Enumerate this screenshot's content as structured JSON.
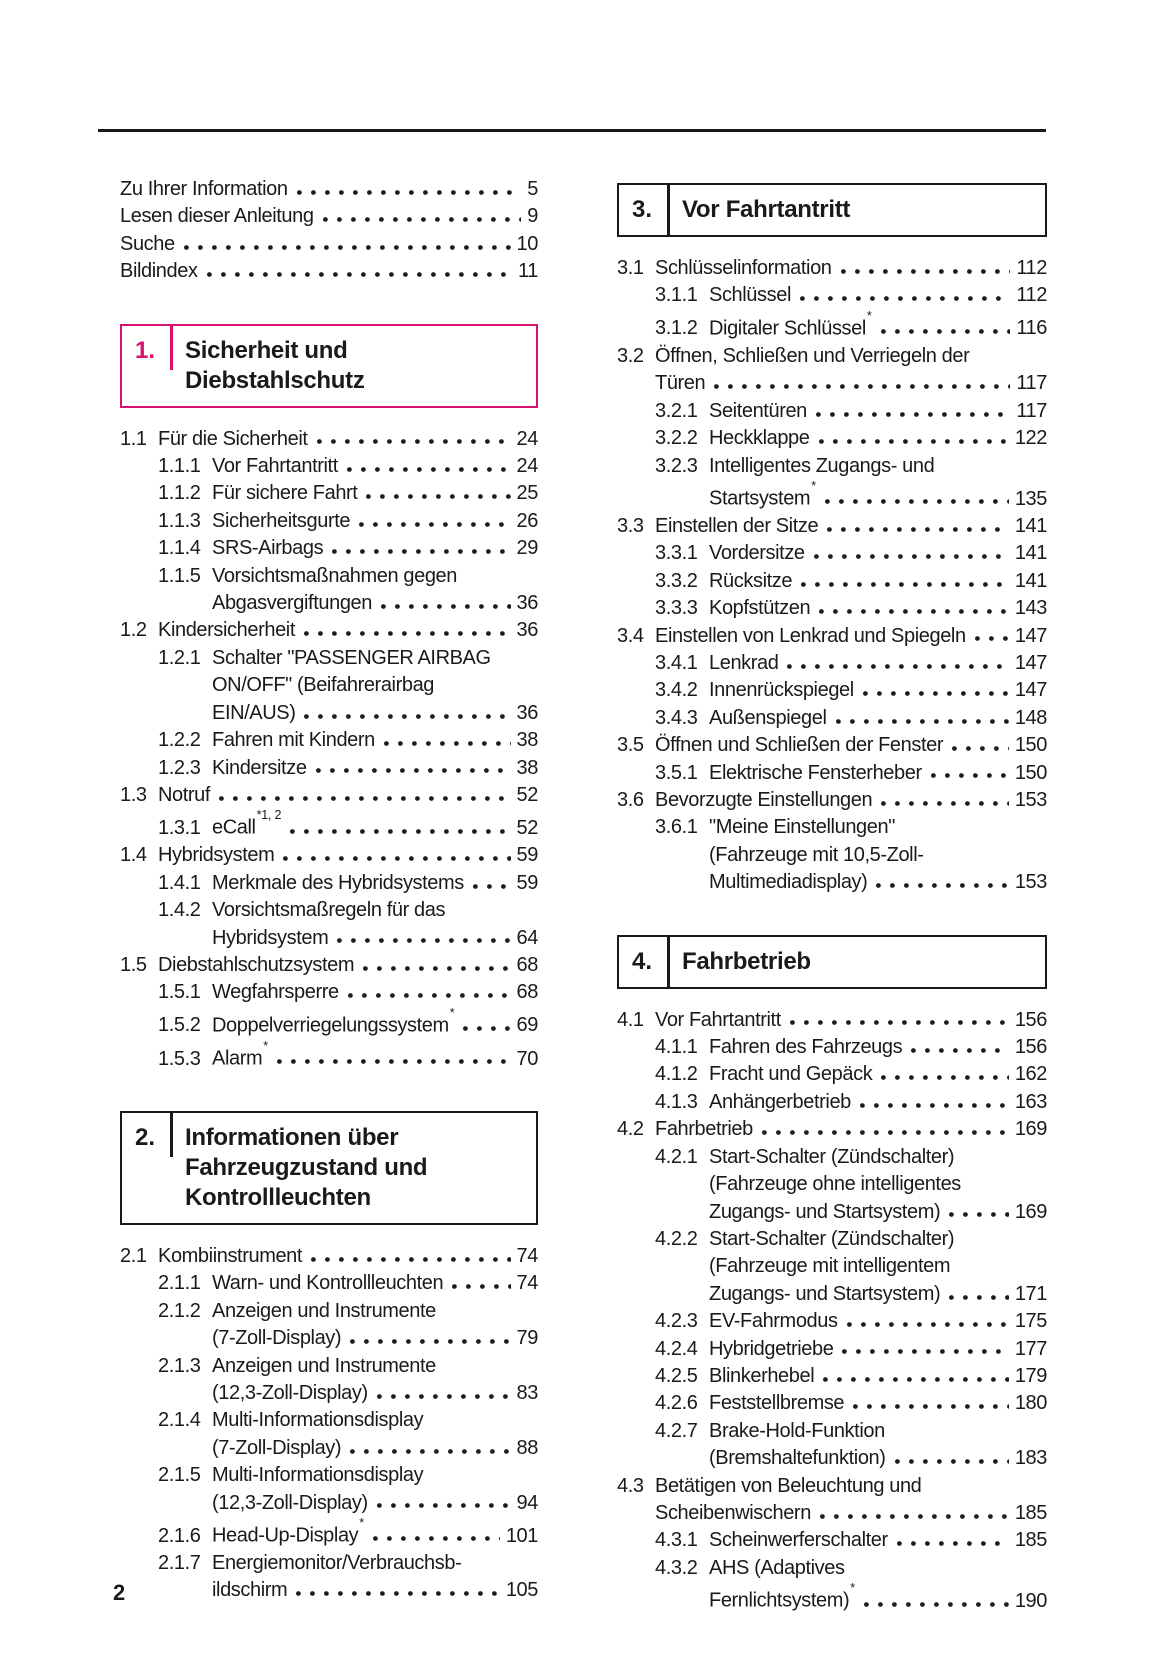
{
  "colors": {
    "ink": "#1a1a1a",
    "accent_pink": "#d6116e"
  },
  "footer": {
    "page_number": "2"
  },
  "columns": {
    "left": [
      {
        "type": "list",
        "entries": [
          {
            "lines": [
              "Zu Ihrer Information"
            ],
            "page": "5"
          },
          {
            "lines": [
              "Lesen dieser Anleitung"
            ],
            "page": "9"
          },
          {
            "lines": [
              "Suche"
            ],
            "page": "10"
          },
          {
            "lines": [
              "Bildindex"
            ],
            "page": "11"
          }
        ]
      },
      {
        "type": "box",
        "number": "1.",
        "accent": "pink",
        "title_lines": [
          "Sicherheit und",
          "Diebstahlschutz"
        ]
      },
      {
        "type": "list",
        "entries": [
          {
            "num": "1.1",
            "lines": [
              "Für die Sicherheit"
            ],
            "page": "24"
          },
          {
            "num": "1.1.1",
            "lines": [
              "Vor Fahrtantritt"
            ],
            "page": "24"
          },
          {
            "num": "1.1.2",
            "lines": [
              "Für sichere Fahrt"
            ],
            "page": "25"
          },
          {
            "num": "1.1.3",
            "lines": [
              "Sicherheitsgurte"
            ],
            "page": "26"
          },
          {
            "num": "1.1.4",
            "lines": [
              "SRS-Airbags"
            ],
            "page": "29"
          },
          {
            "num": "1.1.5",
            "lines": [
              "Vorsichtsmaßnahmen gegen",
              "Abgasvergiftungen"
            ],
            "page": "36"
          },
          {
            "num": "1.2",
            "lines": [
              "Kindersicherheit"
            ],
            "page": "36"
          },
          {
            "num": "1.2.1",
            "lines": [
              "Schalter \"PASSENGER AIRBAG",
              "ON/OFF\" (Beifahrerairbag",
              "EIN/AUS)"
            ],
            "page": "36"
          },
          {
            "num": "1.2.2",
            "lines": [
              "Fahren mit Kindern"
            ],
            "page": "38"
          },
          {
            "num": "1.2.3",
            "lines": [
              "Kindersitze"
            ],
            "page": "38"
          },
          {
            "num": "1.3",
            "lines": [
              "Notruf"
            ],
            "page": "52"
          },
          {
            "num": "1.3.1",
            "lines": [
              "eCall"
            ],
            "sup": "*1, 2",
            "page": "52"
          },
          {
            "num": "1.4",
            "lines": [
              "Hybridsystem"
            ],
            "page": "59"
          },
          {
            "num": "1.4.1",
            "lines": [
              "Merkmale des Hybridsystems"
            ],
            "page": "59"
          },
          {
            "num": "1.4.2",
            "lines": [
              "Vorsichtsmaßregeln für das",
              "Hybridsystem"
            ],
            "page": "64"
          },
          {
            "num": "1.5",
            "lines": [
              "Diebstahlschutzsystem"
            ],
            "page": "68"
          },
          {
            "num": "1.5.1",
            "lines": [
              "Wegfahrsperre"
            ],
            "page": "68"
          },
          {
            "num": "1.5.2",
            "lines": [
              "Doppelverriegelungssystem"
            ],
            "sup": "*",
            "page": "69"
          },
          {
            "num": "1.5.3",
            "lines": [
              "Alarm"
            ],
            "sup": "*",
            "page": "70"
          }
        ]
      },
      {
        "type": "box",
        "number": "2.",
        "accent": "black",
        "title_lines": [
          "Informationen über",
          "Fahrzeugzustand und",
          "Kontrollleuchten"
        ]
      },
      {
        "type": "list",
        "entries": [
          {
            "num": "2.1",
            "lines": [
              "Kombiinstrument"
            ],
            "page": "74"
          },
          {
            "num": "2.1.1",
            "lines": [
              "Warn- und Kontrollleuchten"
            ],
            "page": "74"
          },
          {
            "num": "2.1.2",
            "lines": [
              "Anzeigen und Instrumente",
              "(7-Zoll-Display)"
            ],
            "page": "79"
          },
          {
            "num": "2.1.3",
            "lines": [
              "Anzeigen und Instrumente",
              "(12,3-Zoll-Display)"
            ],
            "page": "83"
          },
          {
            "num": "2.1.4",
            "lines": [
              "Multi-Informationsdisplay",
              "(7-Zoll-Display)"
            ],
            "page": "88"
          },
          {
            "num": "2.1.5",
            "lines": [
              "Multi-Informationsdisplay",
              "(12,3-Zoll-Display)"
            ],
            "page": "94"
          },
          {
            "num": "2.1.6",
            "lines": [
              "Head-Up-Display"
            ],
            "sup": "*",
            "page": "101"
          },
          {
            "num": "2.1.7",
            "lines": [
              "Energiemonitor/Verbrauchsb-",
              "ildschirm"
            ],
            "page": "105"
          }
        ]
      }
    ],
    "right": [
      {
        "type": "box",
        "number": "3.",
        "accent": "black",
        "title_lines": [
          "Vor Fahrtantritt"
        ]
      },
      {
        "type": "list",
        "entries": [
          {
            "num": "3.1",
            "lines": [
              "Schlüsselinformation"
            ],
            "page": "112"
          },
          {
            "num": "3.1.1",
            "lines": [
              "Schlüssel"
            ],
            "page": "112"
          },
          {
            "num": "3.1.2",
            "lines": [
              "Digitaler Schlüssel"
            ],
            "sup": "*",
            "page": "116"
          },
          {
            "num": "3.2",
            "lines": [
              "Öffnen, Schließen und Verriegeln der",
              "Türen"
            ],
            "page": "117"
          },
          {
            "num": "3.2.1",
            "lines": [
              "Seitentüren"
            ],
            "page": "117"
          },
          {
            "num": "3.2.2",
            "lines": [
              "Heckklappe"
            ],
            "page": "122"
          },
          {
            "num": "3.2.3",
            "lines": [
              "Intelligentes Zugangs- und",
              "Startsystem"
            ],
            "sup": "*",
            "page": "135"
          },
          {
            "num": "3.3",
            "lines": [
              "Einstellen der Sitze"
            ],
            "page": "141"
          },
          {
            "num": "3.3.1",
            "lines": [
              "Vordersitze"
            ],
            "page": "141"
          },
          {
            "num": "3.3.2",
            "lines": [
              "Rücksitze"
            ],
            "page": "141"
          },
          {
            "num": "3.3.3",
            "lines": [
              "Kopfstützen"
            ],
            "page": "143"
          },
          {
            "num": "3.4",
            "lines": [
              "Einstellen von Lenkrad und Spiegeln"
            ],
            "page": "147"
          },
          {
            "num": "3.4.1",
            "lines": [
              "Lenkrad"
            ],
            "page": "147"
          },
          {
            "num": "3.4.2",
            "lines": [
              "Innenrückspiegel"
            ],
            "page": "147"
          },
          {
            "num": "3.4.3",
            "lines": [
              "Außenspiegel"
            ],
            "page": "148"
          },
          {
            "num": "3.5",
            "lines": [
              "Öffnen und Schließen der Fenster"
            ],
            "page": "150"
          },
          {
            "num": "3.5.1",
            "lines": [
              "Elektrische Fensterheber"
            ],
            "page": "150"
          },
          {
            "num": "3.6",
            "lines": [
              "Bevorzugte Einstellungen"
            ],
            "page": "153"
          },
          {
            "num": "3.6.1",
            "lines": [
              "\"Meine Einstellungen\"",
              "(Fahrzeuge mit 10,5-Zoll-",
              "Multimediadisplay)"
            ],
            "page": "153"
          }
        ]
      },
      {
        "type": "box",
        "number": "4.",
        "accent": "black",
        "title_lines": [
          "Fahrbetrieb"
        ]
      },
      {
        "type": "list",
        "entries": [
          {
            "num": "4.1",
            "lines": [
              "Vor Fahrtantritt"
            ],
            "page": "156"
          },
          {
            "num": "4.1.1",
            "lines": [
              "Fahren des Fahrzeugs"
            ],
            "page": "156"
          },
          {
            "num": "4.1.2",
            "lines": [
              "Fracht und Gepäck"
            ],
            "page": "162"
          },
          {
            "num": "4.1.3",
            "lines": [
              "Anhängerbetrieb"
            ],
            "page": "163"
          },
          {
            "num": "4.2",
            "lines": [
              "Fahrbetrieb"
            ],
            "page": "169"
          },
          {
            "num": "4.2.1",
            "lines": [
              "Start-Schalter (Zündschalter)",
              "(Fahrzeuge ohne intelligentes",
              "Zugangs- und Startsystem)"
            ],
            "page": "169"
          },
          {
            "num": "4.2.2",
            "lines": [
              "Start-Schalter (Zündschalter)",
              "(Fahrzeuge mit intelligentem",
              "Zugangs- und Startsystem)"
            ],
            "page": "171"
          },
          {
            "num": "4.2.3",
            "lines": [
              "EV-Fahrmodus"
            ],
            "page": "175"
          },
          {
            "num": "4.2.4",
            "lines": [
              "Hybridgetriebe"
            ],
            "page": "177"
          },
          {
            "num": "4.2.5",
            "lines": [
              "Blinkerhebel"
            ],
            "page": "179"
          },
          {
            "num": "4.2.6",
            "lines": [
              "Feststellbremse"
            ],
            "page": "180"
          },
          {
            "num": "4.2.7",
            "lines": [
              "Brake-Hold-Funktion",
              "(Bremshaltefunktion)"
            ],
            "page": "183"
          },
          {
            "num": "4.3",
            "lines": [
              "Betätigen von Beleuchtung und",
              "Scheibenwischern"
            ],
            "page": "185"
          },
          {
            "num": "4.3.1",
            "lines": [
              "Scheinwerferschalter"
            ],
            "page": "185"
          },
          {
            "num": "4.3.2",
            "lines": [
              "AHS (Adaptives",
              "Fernlichtsystem)"
            ],
            "sup": "*",
            "page": "190"
          }
        ]
      }
    ]
  }
}
